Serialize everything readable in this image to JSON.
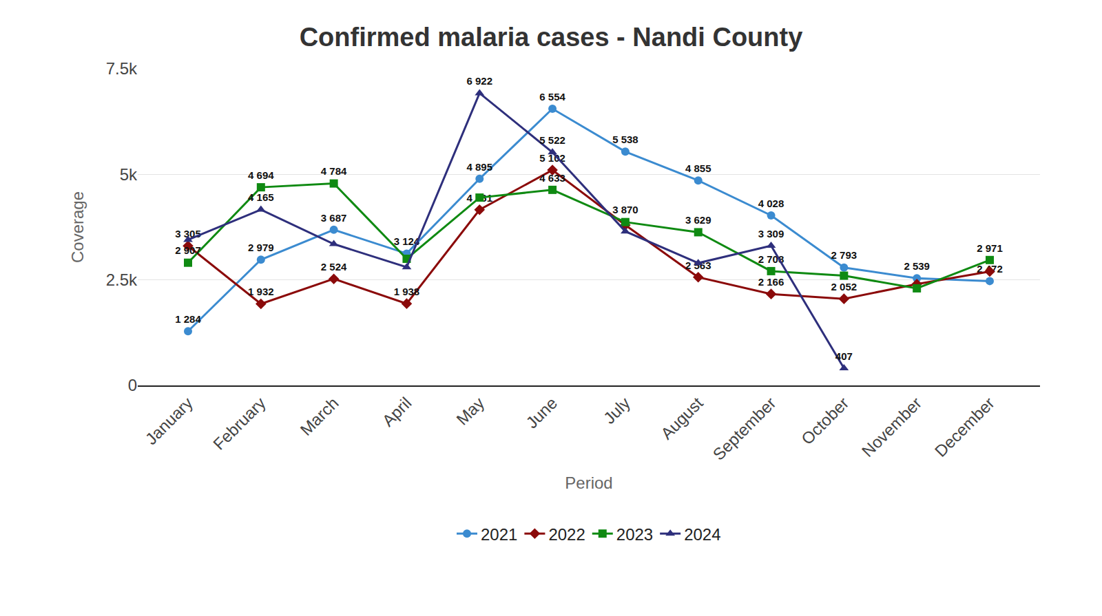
{
  "chart_data": {
    "type": "line",
    "title": "Confirmed malaria cases - Nandi County",
    "x_label": "Period",
    "y_label": "Coverage",
    "categories": [
      "January",
      "February",
      "March",
      "April",
      "May",
      "June",
      "July",
      "August",
      "September",
      "October",
      "November",
      "December"
    ],
    "ylim": [
      0,
      7500
    ],
    "yticks": [
      0,
      {
        "value": 2500,
        "label": "2.5k"
      },
      {
        "value": 5000,
        "label": "5k"
      },
      {
        "value": 7500,
        "label": "7.5k"
      }
    ],
    "grid": true,
    "legend": "bottom",
    "data_labels": true,
    "series": [
      {
        "name": "2021",
        "color": "#3b8bd0",
        "marker": "circle",
        "values": [
          1284,
          2979,
          3687,
          3124,
          4895,
          6554,
          5538,
          4855,
          4028,
          2793,
          2539,
          2472
        ],
        "value_labels": [
          "1 284",
          "2 979",
          "3 687",
          "3 124",
          "4 895",
          "6 554",
          "5 538",
          "4 855",
          "4 028",
          "2 793",
          "2 539",
          "2 472"
        ]
      },
      {
        "name": "2022",
        "color": "#8b0a0a",
        "marker": "diamond",
        "values": [
          3305,
          1932,
          2524,
          1938,
          4161,
          5102,
          3800,
          2563,
          2166,
          2052,
          2400,
          2700
        ],
        "value_labels": [
          "3 305",
          "1 932",
          "2 524",
          "1 938",
          "4 161",
          "5 102",
          null,
          "2 563",
          "2 166",
          "2 052",
          null,
          null
        ]
      },
      {
        "name": "2023",
        "color": "#0f8a12",
        "marker": "square",
        "values": [
          2907,
          4694,
          4784,
          3000,
          4450,
          4633,
          3870,
          3629,
          2708,
          2600,
          2300,
          2971
        ],
        "value_labels": [
          "2 907",
          "4 694",
          "4 784",
          null,
          null,
          "4 633",
          "3 870",
          "3 629",
          "2 708",
          null,
          null,
          "2 971"
        ]
      },
      {
        "name": "2024",
        "color": "#2e2f7c",
        "marker": "triangle-up",
        "values": [
          3450,
          4165,
          3350,
          2800,
          6922,
          5522,
          3650,
          2900,
          3309,
          407,
          null,
          null
        ],
        "value_labels": [
          null,
          "4 165",
          null,
          null,
          "6 922",
          "5 522",
          null,
          null,
          "3 309",
          "407",
          null,
          null
        ]
      }
    ]
  }
}
